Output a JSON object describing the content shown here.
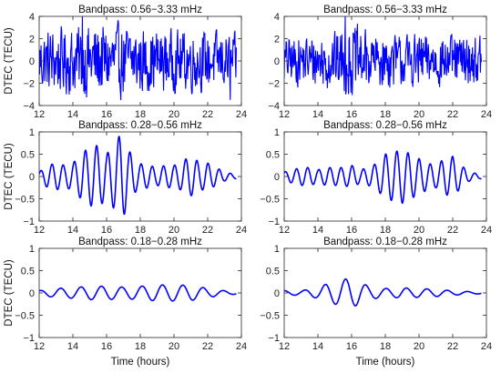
{
  "colors": {
    "series": "#0000ff",
    "axis": "#262626",
    "background": "#ffffff"
  },
  "chart_data": [
    {
      "type": "line",
      "title": "Bandpass: 0.56−3.33 mHz",
      "ylabel": "DTEC (TECU)",
      "xlabel": "",
      "xlim": [
        12,
        24
      ],
      "ylim": [
        -4,
        4
      ],
      "xticks": [
        "12",
        "14",
        "16",
        "18",
        "20",
        "22",
        "24"
      ],
      "yticks": [
        "−4",
        "−2",
        "0",
        "2",
        "4"
      ],
      "grid": false,
      "series": [
        {
          "x_range": [
            12,
            24
          ],
          "envelope": [
            [
              12,
              2.4
            ],
            [
              13,
              2.5
            ],
            [
              14,
              2.6
            ],
            [
              15,
              3.0
            ],
            [
              16,
              2.8
            ],
            [
              17,
              2.7
            ],
            [
              18,
              2.5
            ],
            [
              19,
              2.4
            ],
            [
              20,
              2.3
            ],
            [
              21,
              2.4
            ],
            [
              22,
              2.2
            ],
            [
              23,
              2.2
            ],
            [
              23.6,
              2.0
            ]
          ],
          "freq_mHz": [
            0.56,
            3.33
          ],
          "y_peak": [
            -3.5,
            4.0
          ]
        }
      ]
    },
    {
      "type": "line",
      "title": "Bandpass: 0.56−3.33 mHz",
      "ylabel": "",
      "xlabel": "",
      "xlim": [
        12,
        24
      ],
      "ylim": [
        -4,
        4
      ],
      "xticks": [
        "12",
        "14",
        "16",
        "18",
        "20",
        "22",
        "24"
      ],
      "yticks": [
        "−4",
        "−2",
        "0",
        "2",
        "4"
      ],
      "grid": false,
      "series": [
        {
          "x_range": [
            12,
            24
          ],
          "envelope": [
            [
              12,
              1.8
            ],
            [
              13,
              1.9
            ],
            [
              14,
              2.1
            ],
            [
              15,
              2.3
            ],
            [
              16,
              2.8
            ],
            [
              17,
              2.2
            ],
            [
              18,
              2.1
            ],
            [
              19,
              2.0
            ],
            [
              20,
              2.1
            ],
            [
              21,
              2.0
            ],
            [
              22,
              1.9
            ],
            [
              23,
              2.0
            ],
            [
              23.6,
              1.9
            ]
          ],
          "freq_mHz": [
            0.56,
            3.33
          ],
          "y_peak": [
            -3.0,
            4.0
          ]
        }
      ]
    },
    {
      "type": "line",
      "title": "Bandpass: 0.28−0.56 mHz",
      "ylabel": "DTEC (TECU)",
      "xlabel": "",
      "xlim": [
        12,
        24
      ],
      "ylim": [
        -1,
        1
      ],
      "xticks": [
        "12",
        "14",
        "16",
        "18",
        "20",
        "22",
        "24"
      ],
      "yticks": [
        "−1",
        "−0.5",
        "0",
        "0.5",
        "1"
      ],
      "grid": false,
      "series": [
        {
          "x_range": [
            12,
            24
          ],
          "freq_mHz": [
            0.28,
            0.56
          ],
          "envelope": [
            [
              12,
              0.1
            ],
            [
              12.5,
              0.25
            ],
            [
              13,
              0.3
            ],
            [
              13.5,
              0.25
            ],
            [
              14,
              0.3
            ],
            [
              14.6,
              0.55
            ],
            [
              15,
              0.65
            ],
            [
              15.5,
              0.7
            ],
            [
              16,
              0.5
            ],
            [
              16.5,
              0.75
            ],
            [
              16.9,
              1.0
            ],
            [
              17.3,
              0.6
            ],
            [
              17.8,
              0.3
            ],
            [
              18.5,
              0.25
            ],
            [
              19,
              0.2
            ],
            [
              19.5,
              0.25
            ],
            [
              20,
              0.25
            ],
            [
              20.4,
              0.3
            ],
            [
              20.9,
              0.45
            ],
            [
              21.2,
              0.4
            ],
            [
              21.6,
              0.3
            ],
            [
              22,
              0.3
            ],
            [
              22.5,
              0.2
            ],
            [
              23,
              0.1
            ],
            [
              23.6,
              0.05
            ]
          ],
          "y_peak": [
            -1.0,
            1.0
          ]
        }
      ]
    },
    {
      "type": "line",
      "title": "Bandpass: 0.28−0.56 mHz",
      "ylabel": "",
      "xlabel": "",
      "xlim": [
        12,
        24
      ],
      "ylim": [
        -1,
        1
      ],
      "xticks": [
        "12",
        "14",
        "16",
        "18",
        "20",
        "22",
        "24"
      ],
      "yticks": [
        "−1",
        "−0.5",
        "0",
        "0.5",
        "1"
      ],
      "grid": false,
      "series": [
        {
          "x_range": [
            12,
            24
          ],
          "freq_mHz": [
            0.28,
            0.56
          ],
          "envelope": [
            [
              12,
              0.1
            ],
            [
              12.5,
              0.15
            ],
            [
              13,
              0.2
            ],
            [
              13.5,
              0.2
            ],
            [
              14,
              0.15
            ],
            [
              14.5,
              0.2
            ],
            [
              15,
              0.2
            ],
            [
              15.5,
              0.2
            ],
            [
              16,
              0.25
            ],
            [
              16.5,
              0.15
            ],
            [
              17,
              0.2
            ],
            [
              17.5,
              0.3
            ],
            [
              18,
              0.5
            ],
            [
              18.5,
              0.55
            ],
            [
              19,
              0.6
            ],
            [
              19.5,
              0.5
            ],
            [
              20,
              0.4
            ],
            [
              20.5,
              0.3
            ],
            [
              21,
              0.25
            ],
            [
              21.5,
              0.4
            ],
            [
              22,
              0.45
            ],
            [
              22.5,
              0.25
            ],
            [
              23,
              0.1
            ],
            [
              23.6,
              0.05
            ]
          ],
          "y_peak": [
            -0.6,
            0.6
          ]
        }
      ]
    },
    {
      "type": "line",
      "title": "Bandpass: 0.18−0.28 mHz",
      "ylabel": "DTEC (TECU)",
      "xlabel": "Time (hours)",
      "xlim": [
        12,
        24
      ],
      "ylim": [
        -1,
        1
      ],
      "xticks": [
        "12",
        "14",
        "16",
        "18",
        "20",
        "22",
        "24"
      ],
      "yticks": [
        "−1",
        "−0.5",
        "0",
        "0.5",
        "1"
      ],
      "grid": false,
      "series": [
        {
          "x_range": [
            12,
            24
          ],
          "freq_mHz": [
            0.18,
            0.28
          ],
          "envelope": [
            [
              12,
              0.05
            ],
            [
              12.5,
              0.08
            ],
            [
              13,
              0.1
            ],
            [
              14,
              0.12
            ],
            [
              15,
              0.15
            ],
            [
              16,
              0.15
            ],
            [
              17,
              0.13
            ],
            [
              18,
              0.15
            ],
            [
              19,
              0.18
            ],
            [
              20,
              0.18
            ],
            [
              21,
              0.17
            ],
            [
              22,
              0.1
            ],
            [
              23,
              0.05
            ],
            [
              23.6,
              0.03
            ]
          ],
          "y_peak": [
            -0.15,
            0.18
          ]
        }
      ]
    },
    {
      "type": "line",
      "title": "Bandpass: 0.18−0.28 mHz",
      "ylabel": "",
      "xlabel": "Time (hours)",
      "xlim": [
        12,
        24
      ],
      "ylim": [
        -1,
        1
      ],
      "xticks": [
        "12",
        "14",
        "16",
        "18",
        "20",
        "22",
        "24"
      ],
      "yticks": [
        "−1",
        "−0.5",
        "0",
        "0.5",
        "1"
      ],
      "grid": false,
      "series": [
        {
          "x_range": [
            12,
            24
          ],
          "freq_mHz": [
            0.18,
            0.28
          ],
          "envelope": [
            [
              12,
              0.05
            ],
            [
              12.5,
              0.05
            ],
            [
              13,
              0.05
            ],
            [
              14,
              0.12
            ],
            [
              14.5,
              0.2
            ],
            [
              15,
              0.25
            ],
            [
              15.5,
              0.3
            ],
            [
              15.9,
              0.33
            ],
            [
              16.3,
              0.28
            ],
            [
              17,
              0.15
            ],
            [
              17.5,
              0.12
            ],
            [
              18,
              0.1
            ],
            [
              18.5,
              0.1
            ],
            [
              19,
              0.12
            ],
            [
              19.5,
              0.1
            ],
            [
              20,
              0.1
            ],
            [
              21,
              0.08
            ],
            [
              22,
              0.05
            ],
            [
              23,
              0.03
            ],
            [
              23.6,
              0.02
            ]
          ],
          "y_peak": [
            -0.33,
            0.35
          ]
        }
      ]
    }
  ]
}
